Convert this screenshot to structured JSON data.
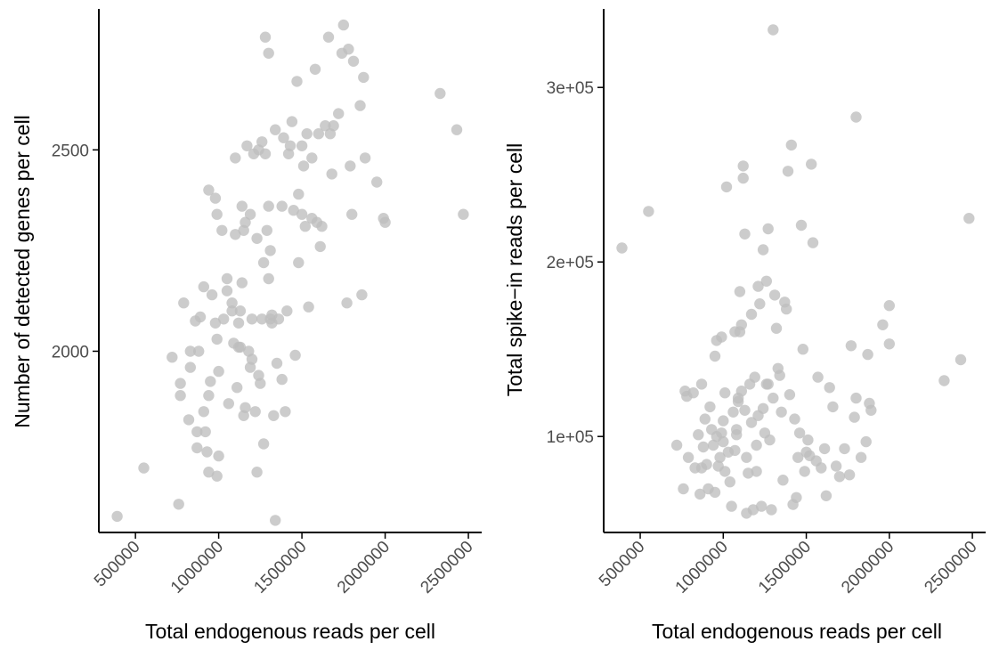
{
  "chart_data": [
    {
      "type": "scatter",
      "title": "",
      "xlabel": "Total endogenous reads per cell",
      "ylabel": "Number of detected genes per cell",
      "xlim": [
        280000,
        2580000
      ],
      "ylim": [
        1550,
        2850
      ],
      "xticks": [
        500000,
        1000000,
        1500000,
        2000000,
        2500000
      ],
      "xtick_labels": [
        "500000",
        "1000000",
        "1500000",
        "2000000",
        "2500000"
      ],
      "yticks": [
        2000,
        2500
      ],
      "ytick_labels": [
        "2000",
        "2500"
      ],
      "grid": false,
      "point_color": "#bebebe",
      "points": [
        [
          390000,
          1590
        ],
        [
          550000,
          1710
        ],
        [
          760000,
          1620
        ],
        [
          720000,
          1985
        ],
        [
          770000,
          1920
        ],
        [
          790000,
          2120
        ],
        [
          770000,
          1890
        ],
        [
          820000,
          1830
        ],
        [
          830000,
          1960
        ],
        [
          830000,
          2000
        ],
        [
          860000,
          2075
        ],
        [
          870000,
          1760
        ],
        [
          880000,
          2000
        ],
        [
          870000,
          1800
        ],
        [
          890000,
          2085
        ],
        [
          910000,
          2160
        ],
        [
          920000,
          1800
        ],
        [
          910000,
          1850
        ],
        [
          940000,
          1890
        ],
        [
          950000,
          1925
        ],
        [
          960000,
          2140
        ],
        [
          930000,
          1750
        ],
        [
          940000,
          1700
        ],
        [
          980000,
          2070
        ],
        [
          990000,
          2030
        ],
        [
          1000000,
          1950
        ],
        [
          990000,
          1690
        ],
        [
          1000000,
          1740
        ],
        [
          940000,
          2400
        ],
        [
          980000,
          2380
        ],
        [
          990000,
          2340
        ],
        [
          1020000,
          2300
        ],
        [
          1030000,
          2080
        ],
        [
          1050000,
          2150
        ],
        [
          1050000,
          2180
        ],
        [
          1060000,
          1870
        ],
        [
          1080000,
          2100
        ],
        [
          1090000,
          2020
        ],
        [
          1080000,
          2120
        ],
        [
          1100000,
          2290
        ],
        [
          1100000,
          2480
        ],
        [
          1110000,
          1910
        ],
        [
          1120000,
          2010
        ],
        [
          1120000,
          2070
        ],
        [
          1130000,
          2010
        ],
        [
          1130000,
          2100
        ],
        [
          1140000,
          2360
        ],
        [
          1140000,
          2170
        ],
        [
          1150000,
          1840
        ],
        [
          1150000,
          2300
        ],
        [
          1160000,
          2320
        ],
        [
          1160000,
          1860
        ],
        [
          1170000,
          2510
        ],
        [
          1180000,
          2000
        ],
        [
          1190000,
          1960
        ],
        [
          1190000,
          2340
        ],
        [
          1200000,
          1980
        ],
        [
          1200000,
          2080
        ],
        [
          1210000,
          2490
        ],
        [
          1220000,
          1850
        ],
        [
          1230000,
          2280
        ],
        [
          1230000,
          1700
        ],
        [
          1240000,
          2500
        ],
        [
          1240000,
          1940
        ],
        [
          1250000,
          1920
        ],
        [
          1260000,
          2520
        ],
        [
          1260000,
          2080
        ],
        [
          1270000,
          1770
        ],
        [
          1270000,
          2220
        ],
        [
          1280000,
          2490
        ],
        [
          1280000,
          2780
        ],
        [
          1290000,
          2300
        ],
        [
          1300000,
          2360
        ],
        [
          1300000,
          2740
        ],
        [
          1300000,
          2180
        ],
        [
          1310000,
          2250
        ],
        [
          1310000,
          2080
        ],
        [
          1320000,
          2090
        ],
        [
          1320000,
          2070
        ],
        [
          1330000,
          1840
        ],
        [
          1340000,
          1580
        ],
        [
          1340000,
          2550
        ],
        [
          1350000,
          1970
        ],
        [
          1360000,
          2080
        ],
        [
          1380000,
          2360
        ],
        [
          1380000,
          1930
        ],
        [
          1390000,
          2530
        ],
        [
          1400000,
          1850
        ],
        [
          1410000,
          2100
        ],
        [
          1420000,
          2490
        ],
        [
          1430000,
          2510
        ],
        [
          1440000,
          2570
        ],
        [
          1450000,
          2350
        ],
        [
          1460000,
          1990
        ],
        [
          1470000,
          2670
        ],
        [
          1480000,
          2390
        ],
        [
          1480000,
          2220
        ],
        [
          1500000,
          2510
        ],
        [
          1500000,
          2340
        ],
        [
          1510000,
          2460
        ],
        [
          1520000,
          2310
        ],
        [
          1530000,
          2540
        ],
        [
          1540000,
          2110
        ],
        [
          1560000,
          2330
        ],
        [
          1560000,
          2480
        ],
        [
          1580000,
          2700
        ],
        [
          1590000,
          2320
        ],
        [
          1600000,
          2540
        ],
        [
          1610000,
          2260
        ],
        [
          1620000,
          2310
        ],
        [
          1640000,
          2560
        ],
        [
          1660000,
          2780
        ],
        [
          1670000,
          2540
        ],
        [
          1680000,
          2440
        ],
        [
          1690000,
          2560
        ],
        [
          1720000,
          2590
        ],
        [
          1740000,
          2740
        ],
        [
          1750000,
          2810
        ],
        [
          1770000,
          2120
        ],
        [
          1780000,
          2750
        ],
        [
          1790000,
          2460
        ],
        [
          1800000,
          2340
        ],
        [
          1810000,
          2720
        ],
        [
          1850000,
          2610
        ],
        [
          1860000,
          2140
        ],
        [
          1870000,
          2680
        ],
        [
          1880000,
          2480
        ],
        [
          1950000,
          2420
        ],
        [
          1990000,
          2330
        ],
        [
          2000000,
          2320
        ],
        [
          2330000,
          2640
        ],
        [
          2430000,
          2550
        ],
        [
          2470000,
          2340
        ]
      ]
    },
    {
      "type": "scatter",
      "title": "",
      "xlabel": "Total endogenous reads per cell",
      "ylabel": "Total spike−in reads per cell",
      "xlim": [
        280000,
        2580000
      ],
      "ylim": [
        45000,
        345000
      ],
      "xticks": [
        500000,
        1000000,
        1500000,
        2000000,
        2500000
      ],
      "xtick_labels": [
        "500000",
        "1000000",
        "1500000",
        "2000000",
        "2500000"
      ],
      "yticks": [
        100000,
        200000,
        300000
      ],
      "ytick_labels": [
        "1e+05",
        "2e+05",
        "3e+05"
      ],
      "grid": false,
      "point_color": "#bebebe",
      "points": [
        [
          390000,
          208000
        ],
        [
          550000,
          229000
        ],
        [
          720000,
          95000
        ],
        [
          760000,
          70000
        ],
        [
          770000,
          126000
        ],
        [
          780000,
          123000
        ],
        [
          790000,
          88000
        ],
        [
          820000,
          125000
        ],
        [
          830000,
          82000
        ],
        [
          850000,
          101000
        ],
        [
          860000,
          67000
        ],
        [
          870000,
          130000
        ],
        [
          870000,
          82000
        ],
        [
          880000,
          94000
        ],
        [
          890000,
          110000
        ],
        [
          900000,
          84000
        ],
        [
          910000,
          70000
        ],
        [
          920000,
          117000
        ],
        [
          930000,
          104000
        ],
        [
          940000,
          95000
        ],
        [
          950000,
          146000
        ],
        [
          950000,
          68000
        ],
        [
          960000,
          155000
        ],
        [
          960000,
          100000
        ],
        [
          970000,
          83000
        ],
        [
          980000,
          88000
        ],
        [
          990000,
          157000
        ],
        [
          990000,
          102000
        ],
        [
          1000000,
          97000
        ],
        [
          1000000,
          109000
        ],
        [
          1010000,
          125000
        ],
        [
          1010000,
          80000
        ],
        [
          1020000,
          243000
        ],
        [
          1030000,
          91000
        ],
        [
          1040000,
          74000
        ],
        [
          1050000,
          60000
        ],
        [
          1060000,
          114000
        ],
        [
          1070000,
          92000
        ],
        [
          1070000,
          160000
        ],
        [
          1080000,
          101000
        ],
        [
          1080000,
          104000
        ],
        [
          1090000,
          120000
        ],
        [
          1090000,
          122000
        ],
        [
          1100000,
          183000
        ],
        [
          1100000,
          160000
        ],
        [
          1110000,
          126000
        ],
        [
          1110000,
          164000
        ],
        [
          1120000,
          255000
        ],
        [
          1120000,
          248000
        ],
        [
          1130000,
          216000
        ],
        [
          1130000,
          115000
        ],
        [
          1140000,
          88000
        ],
        [
          1140000,
          56000
        ],
        [
          1150000,
          79000
        ],
        [
          1160000,
          130000
        ],
        [
          1170000,
          170000
        ],
        [
          1170000,
          108000
        ],
        [
          1180000,
          58000
        ],
        [
          1190000,
          134000
        ],
        [
          1200000,
          95000
        ],
        [
          1200000,
          80000
        ],
        [
          1210000,
          112000
        ],
        [
          1210000,
          186000
        ],
        [
          1220000,
          176000
        ],
        [
          1230000,
          60000
        ],
        [
          1240000,
          207000
        ],
        [
          1240000,
          116000
        ],
        [
          1250000,
          102000
        ],
        [
          1260000,
          189000
        ],
        [
          1260000,
          130000
        ],
        [
          1270000,
          219000
        ],
        [
          1270000,
          130000
        ],
        [
          1280000,
          98000
        ],
        [
          1290000,
          58000
        ],
        [
          1300000,
          333000
        ],
        [
          1300000,
          122000
        ],
        [
          1310000,
          181000
        ],
        [
          1320000,
          162000
        ],
        [
          1330000,
          139000
        ],
        [
          1340000,
          135000
        ],
        [
          1350000,
          114000
        ],
        [
          1360000,
          75000
        ],
        [
          1370000,
          177000
        ],
        [
          1380000,
          173000
        ],
        [
          1390000,
          252000
        ],
        [
          1400000,
          124000
        ],
        [
          1410000,
          267000
        ],
        [
          1420000,
          61000
        ],
        [
          1430000,
          110000
        ],
        [
          1440000,
          65000
        ],
        [
          1450000,
          88000
        ],
        [
          1460000,
          102000
        ],
        [
          1470000,
          221000
        ],
        [
          1480000,
          150000
        ],
        [
          1490000,
          80000
        ],
        [
          1500000,
          91000
        ],
        [
          1510000,
          98000
        ],
        [
          1520000,
          89000
        ],
        [
          1530000,
          256000
        ],
        [
          1540000,
          211000
        ],
        [
          1560000,
          86000
        ],
        [
          1570000,
          134000
        ],
        [
          1590000,
          82000
        ],
        [
          1610000,
          93000
        ],
        [
          1620000,
          66000
        ],
        [
          1640000,
          128000
        ],
        [
          1660000,
          117000
        ],
        [
          1680000,
          83000
        ],
        [
          1700000,
          77000
        ],
        [
          1730000,
          93000
        ],
        [
          1760000,
          78000
        ],
        [
          1770000,
          152000
        ],
        [
          1790000,
          111000
        ],
        [
          1800000,
          283000
        ],
        [
          1800000,
          122000
        ],
        [
          1830000,
          88000
        ],
        [
          1860000,
          97000
        ],
        [
          1870000,
          147000
        ],
        [
          1880000,
          119000
        ],
        [
          1890000,
          115000
        ],
        [
          1960000,
          164000
        ],
        [
          2000000,
          175000
        ],
        [
          2000000,
          153000
        ],
        [
          2330000,
          132000
        ],
        [
          2430000,
          144000
        ],
        [
          2480000,
          225000
        ]
      ]
    }
  ]
}
